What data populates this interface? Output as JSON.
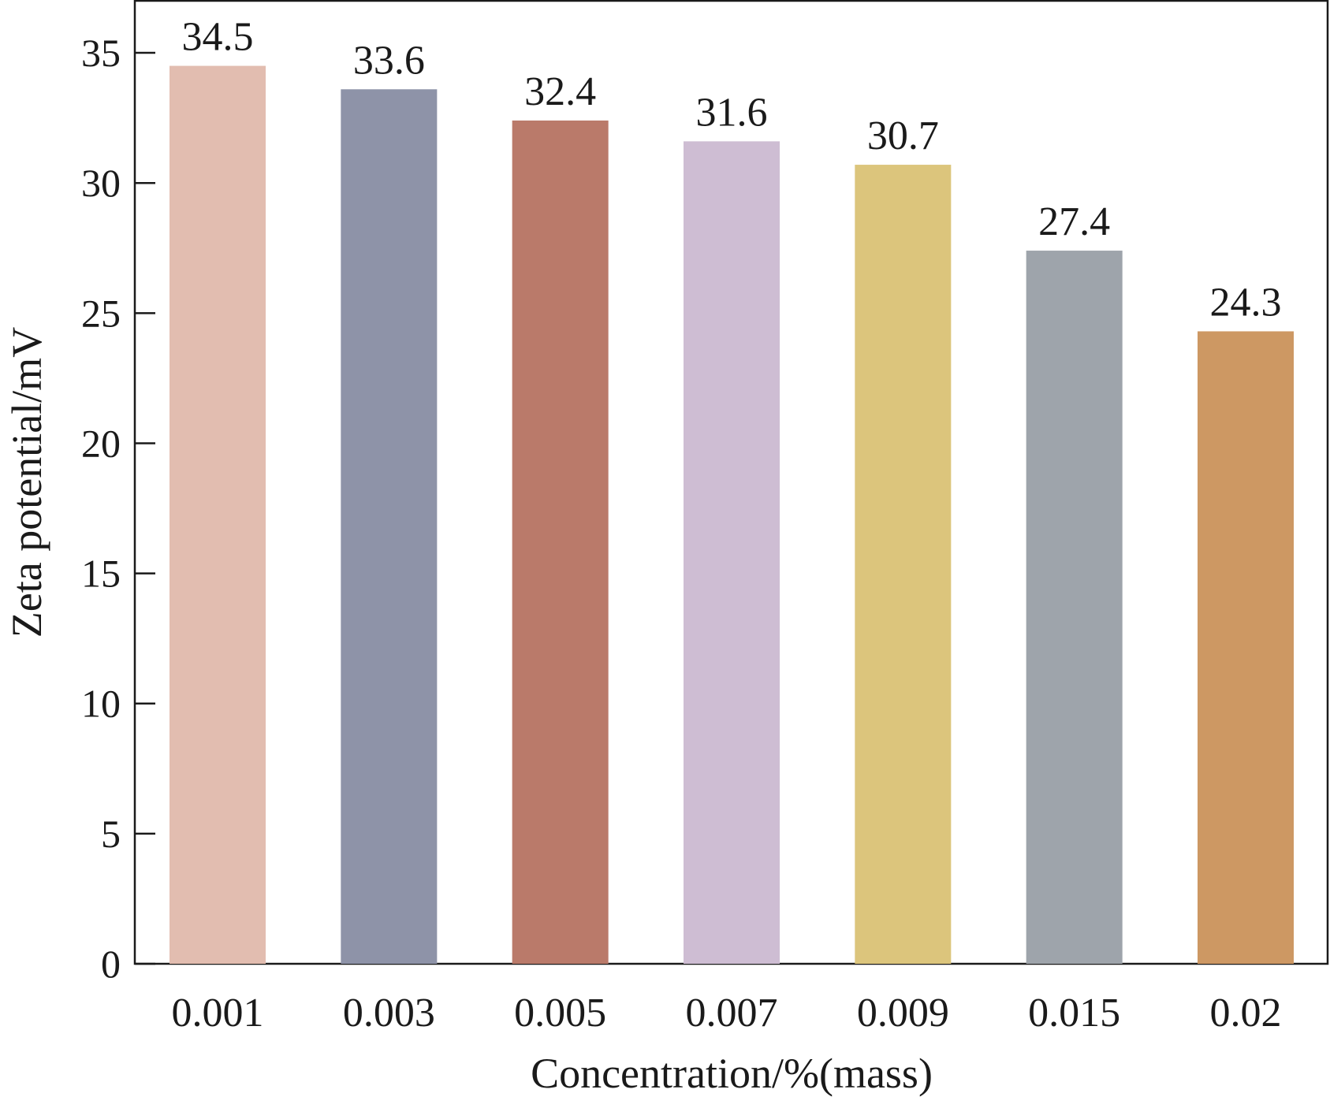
{
  "chart_data": {
    "type": "bar",
    "title": "",
    "xlabel": "Concentration/%(mass)",
    "ylabel": "Zeta potential/mV",
    "categories": [
      "0.001",
      "0.003",
      "0.005",
      "0.007",
      "0.009",
      "0.015",
      "0.02"
    ],
    "values": [
      34.5,
      33.6,
      32.4,
      31.6,
      30.7,
      27.4,
      24.3
    ],
    "value_labels": [
      "34.5",
      "33.6",
      "32.4",
      "31.6",
      "30.7",
      "27.4",
      "24.3"
    ],
    "bar_colors": [
      "#e2bdb0",
      "#8e93a8",
      "#ba7a6a",
      "#cebdd3",
      "#dcc57c",
      "#9ea4ab",
      "#cd9863"
    ],
    "ylim": [
      0,
      37
    ],
    "yticks": [
      0,
      5,
      10,
      15,
      20,
      25,
      30,
      35
    ],
    "ytick_labels": [
      "0",
      "5",
      "10",
      "15",
      "20",
      "25",
      "30",
      "35"
    ],
    "grid": false,
    "legend": "none"
  }
}
